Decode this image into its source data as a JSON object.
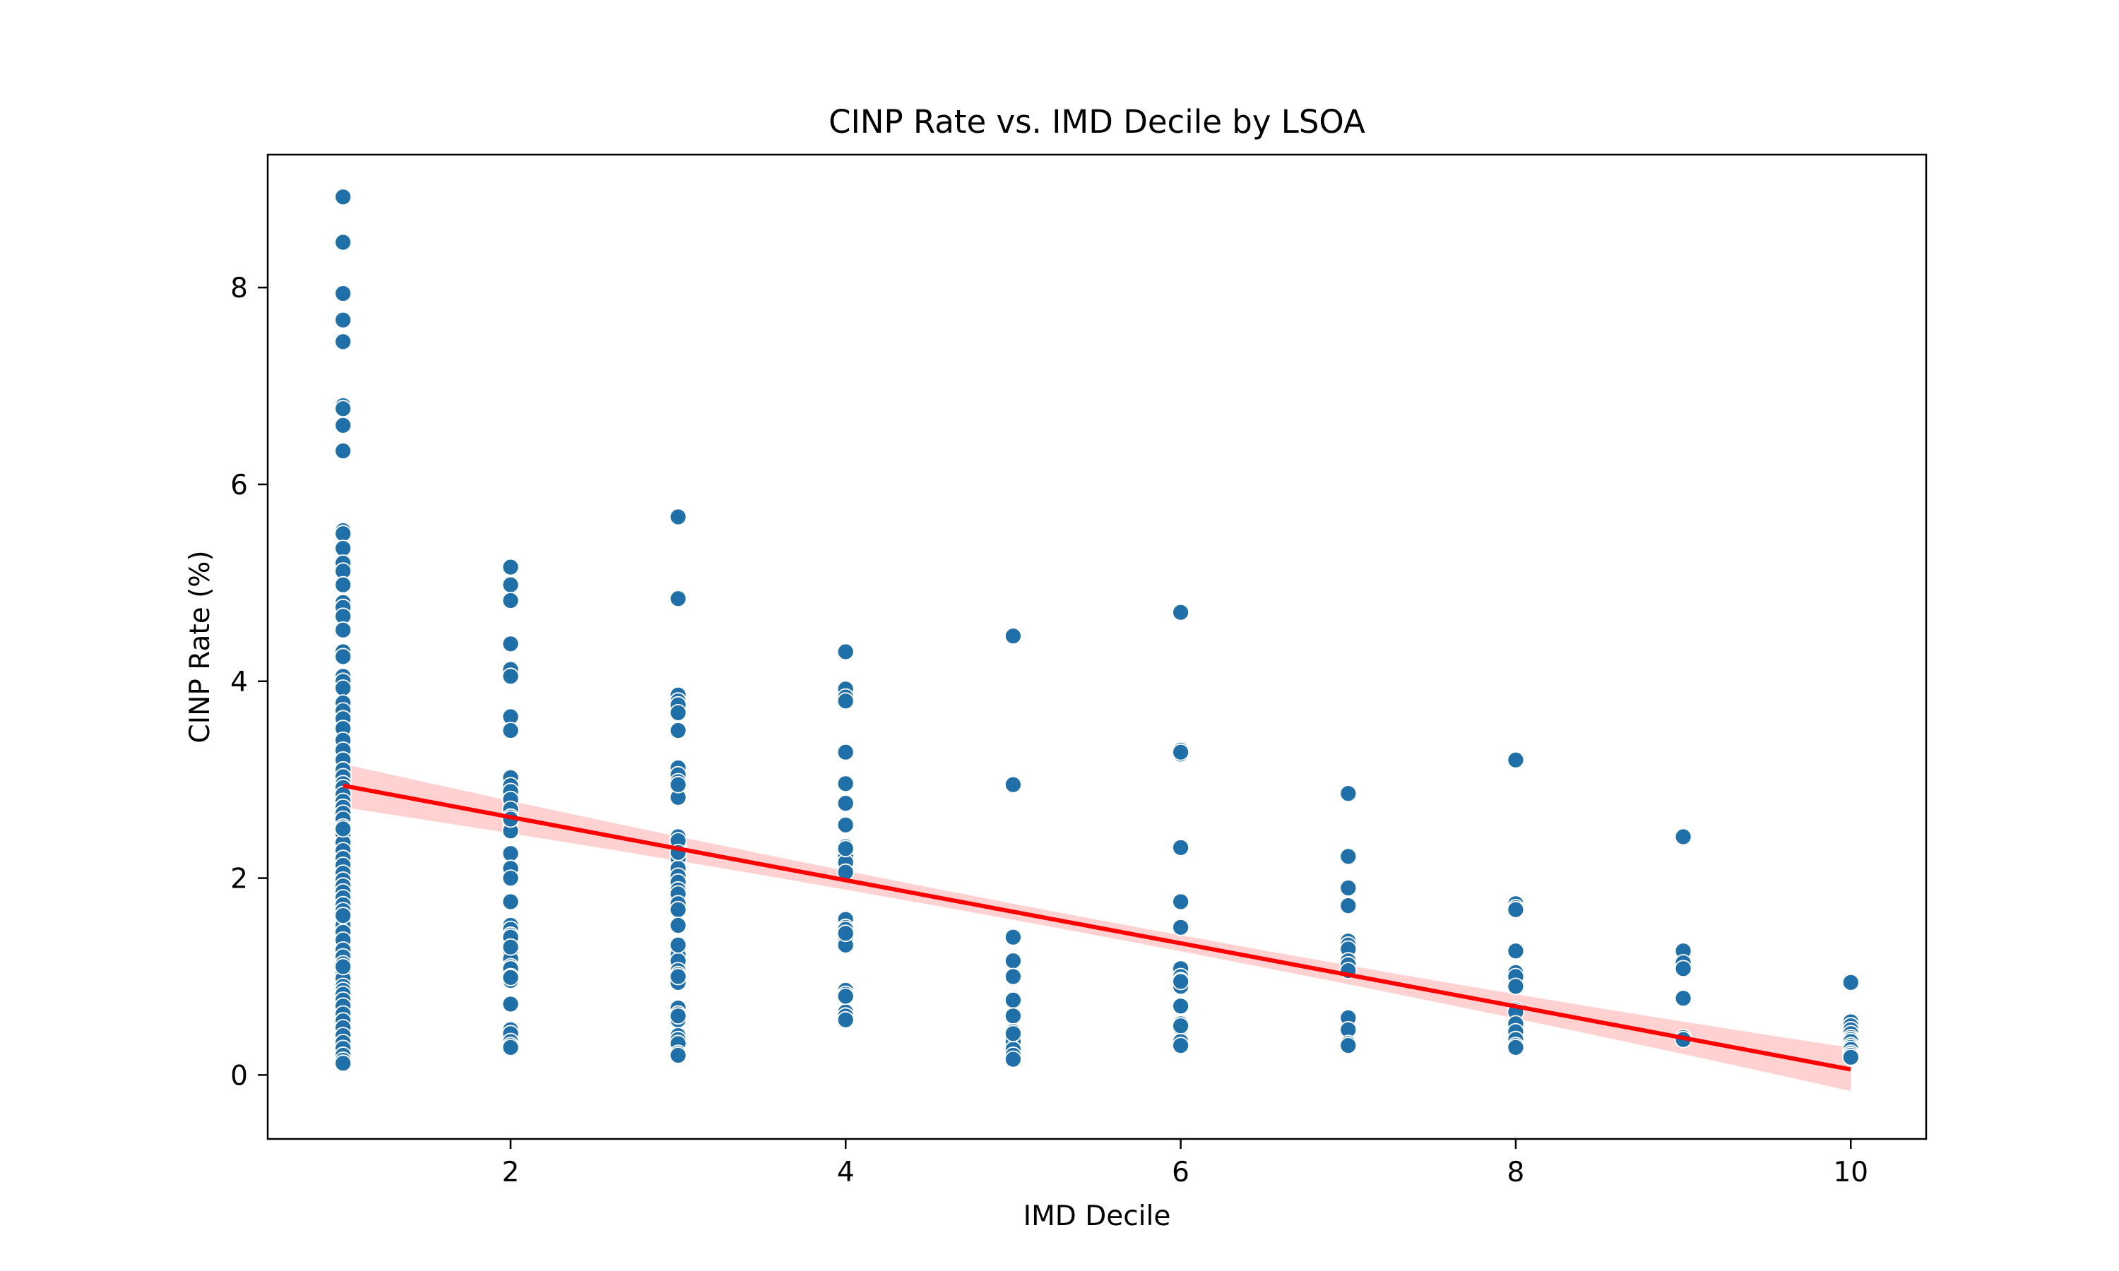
{
  "chart_data": {
    "type": "scatter",
    "title": "CINP Rate vs. IMD Decile by LSOA",
    "xlabel": "IMD Decile",
    "ylabel": "CINP Rate (%)",
    "xlim": [
      0.55,
      10.45
    ],
    "ylim": [
      -0.65,
      9.35
    ],
    "xticks": [
      2,
      4,
      6,
      8,
      10
    ],
    "yticks": [
      0,
      2,
      4,
      6,
      8
    ],
    "grid": false,
    "legend": "none",
    "colors": {
      "points": "#1f6fa8",
      "point_edge": "#ffffff",
      "regression_line": "#ff0000",
      "confidence_band": "#ff9a9a"
    },
    "series": [
      {
        "x": [
          1,
          1,
          1,
          1,
          1,
          1,
          1,
          1,
          1,
          1,
          1,
          1,
          1,
          1,
          1,
          1,
          1,
          1,
          1,
          1,
          1,
          1,
          1,
          1,
          1,
          1,
          1,
          1,
          1,
          1,
          1,
          1,
          1,
          1,
          1,
          1,
          1,
          1,
          1,
          1,
          1,
          1,
          1,
          1,
          1,
          1,
          1,
          1,
          1,
          1,
          1,
          1,
          1,
          1,
          1,
          1,
          1,
          1,
          1,
          1,
          1,
          1,
          1,
          1,
          1,
          1,
          1,
          1,
          1,
          1,
          1,
          1,
          1,
          1,
          1,
          1,
          1,
          1,
          1,
          1,
          2,
          2,
          2,
          2,
          2,
          2,
          2,
          2,
          2,
          2,
          2,
          2,
          2,
          2,
          2,
          2,
          2,
          2,
          2,
          2,
          2,
          2,
          2,
          2,
          2,
          2,
          2,
          2,
          2,
          2,
          2,
          2,
          2,
          2,
          2,
          2,
          2,
          2,
          2,
          2,
          2,
          2,
          2,
          3,
          3,
          3,
          3,
          3,
          3,
          3,
          3,
          3,
          3,
          3,
          3,
          3,
          3,
          3,
          3,
          3,
          3,
          3,
          3,
          3,
          3,
          3,
          3,
          3,
          3,
          3,
          3,
          3,
          3,
          3,
          3,
          3,
          3,
          3,
          3,
          3,
          3,
          3,
          3,
          3,
          3,
          3,
          3,
          3,
          3,
          3,
          4,
          4,
          4,
          4,
          4,
          4,
          4,
          4,
          4,
          4,
          4,
          4,
          4,
          4,
          4,
          4,
          4,
          4,
          4,
          4,
          4,
          4,
          4,
          4,
          4,
          4,
          4,
          5,
          5,
          5,
          5,
          5,
          5,
          5,
          5,
          5,
          5,
          5,
          5,
          5,
          5,
          6,
          6,
          6,
          6,
          6,
          6,
          6,
          6,
          6,
          6,
          6,
          6,
          6,
          6,
          6,
          6,
          6,
          6,
          6,
          7,
          7,
          7,
          7,
          7,
          7,
          7,
          7,
          7,
          7,
          7,
          7,
          7,
          7,
          8,
          8,
          8,
          8,
          8,
          8,
          8,
          8,
          8,
          8,
          8,
          8,
          8,
          8,
          8,
          9,
          9,
          9,
          9,
          9,
          9,
          9,
          10,
          10,
          10,
          10,
          10,
          10,
          10,
          10,
          10,
          10,
          10,
          10,
          10,
          10
        ],
        "y": [
          8.92,
          8.46,
          7.94,
          7.67,
          7.45,
          6.8,
          6.77,
          6.6,
          6.34,
          5.53,
          5.5,
          5.35,
          5.2,
          5.12,
          4.98,
          4.8,
          4.75,
          4.66,
          4.52,
          4.3,
          4.25,
          4.05,
          4.0,
          3.93,
          3.78,
          3.7,
          3.62,
          3.52,
          3.4,
          3.3,
          3.2,
          3.1,
          3.03,
          2.96,
          2.92,
          2.85,
          2.78,
          2.72,
          2.66,
          2.6,
          2.52,
          2.45,
          2.36,
          2.28,
          2.2,
          2.13,
          2.05,
          1.98,
          1.92,
          1.86,
          1.8,
          1.73,
          1.67,
          1.62,
          1.58,
          1.52,
          1.45,
          1.37,
          1.27,
          1.2,
          1.13,
          1.05,
          0.98,
          0.9,
          0.86,
          0.82,
          0.76,
          0.7,
          0.62,
          0.55,
          0.48,
          0.4,
          0.33,
          0.27,
          0.2,
          0.15,
          0.12,
          1.1,
          1.62,
          2.5,
          5.16,
          4.98,
          4.82,
          4.38,
          4.12,
          4.05,
          3.64,
          3.5,
          3.02,
          2.94,
          2.88,
          2.8,
          2.7,
          2.62,
          2.58,
          2.48,
          2.25,
          2.08,
          2.04,
          1.76,
          1.52,
          1.48,
          1.42,
          1.34,
          1.32,
          1.22,
          1.18,
          1.1,
          1.08,
          1.0,
          0.96,
          0.72,
          0.46,
          0.42,
          0.34,
          0.3,
          0.28,
          2.6,
          2.1,
          1.4,
          0.99,
          2.0,
          1.3,
          5.67,
          4.84,
          3.86,
          3.8,
          3.76,
          3.68,
          3.5,
          3.12,
          3.05,
          2.98,
          2.94,
          2.82,
          2.42,
          2.36,
          2.32,
          2.28,
          2.24,
          2.2,
          2.1,
          2.02,
          1.96,
          1.88,
          1.84,
          1.74,
          1.68,
          1.52,
          1.28,
          1.22,
          1.16,
          1.06,
          1.02,
          0.98,
          0.94,
          0.68,
          0.62,
          0.56,
          0.4,
          0.36,
          0.32,
          0.22,
          0.2,
          2.95,
          2.38,
          1.32,
          1.0,
          0.6,
          2.26,
          4.3,
          3.92,
          3.84,
          3.8,
          3.28,
          2.96,
          2.76,
          2.54,
          2.32,
          2.22,
          2.16,
          2.06,
          1.58,
          1.5,
          1.48,
          1.42,
          1.4,
          1.36,
          1.32,
          0.86,
          0.82,
          0.64,
          0.6,
          0.56,
          2.3,
          1.44,
          0.8,
          4.46,
          2.95,
          1.4,
          1.16,
          1.0,
          0.76,
          0.6,
          0.44,
          0.4,
          0.34,
          0.26,
          0.2,
          0.16,
          0.42,
          4.7,
          3.3,
          3.26,
          2.31,
          1.76,
          1.5,
          1.08,
          1.0,
          0.96,
          0.92,
          0.9,
          0.7,
          0.52,
          0.48,
          0.34,
          0.3,
          3.28,
          0.95,
          0.5,
          2.86,
          2.22,
          1.9,
          1.72,
          1.36,
          1.32,
          1.28,
          1.16,
          1.12,
          1.06,
          0.58,
          0.46,
          0.32,
          0.3,
          3.2,
          1.74,
          1.7,
          1.68,
          1.26,
          1.04,
          1.0,
          0.9,
          0.66,
          0.64,
          0.52,
          0.44,
          0.36,
          0.3,
          0.28,
          2.42,
          1.26,
          1.14,
          1.08,
          0.78,
          0.38,
          0.36,
          0.94,
          0.54,
          0.5,
          0.46,
          0.42,
          0.38,
          0.36,
          0.34,
          0.3,
          0.28,
          0.26,
          0.22,
          0.2,
          0.18
        ]
      }
    ],
    "regression": {
      "slope": -0.3204,
      "intercept": 3.2604,
      "x_range": [
        1,
        10
      ],
      "ci_half_width_at_ends": 0.22,
      "ci_half_width_at_center": 0.08
    }
  }
}
